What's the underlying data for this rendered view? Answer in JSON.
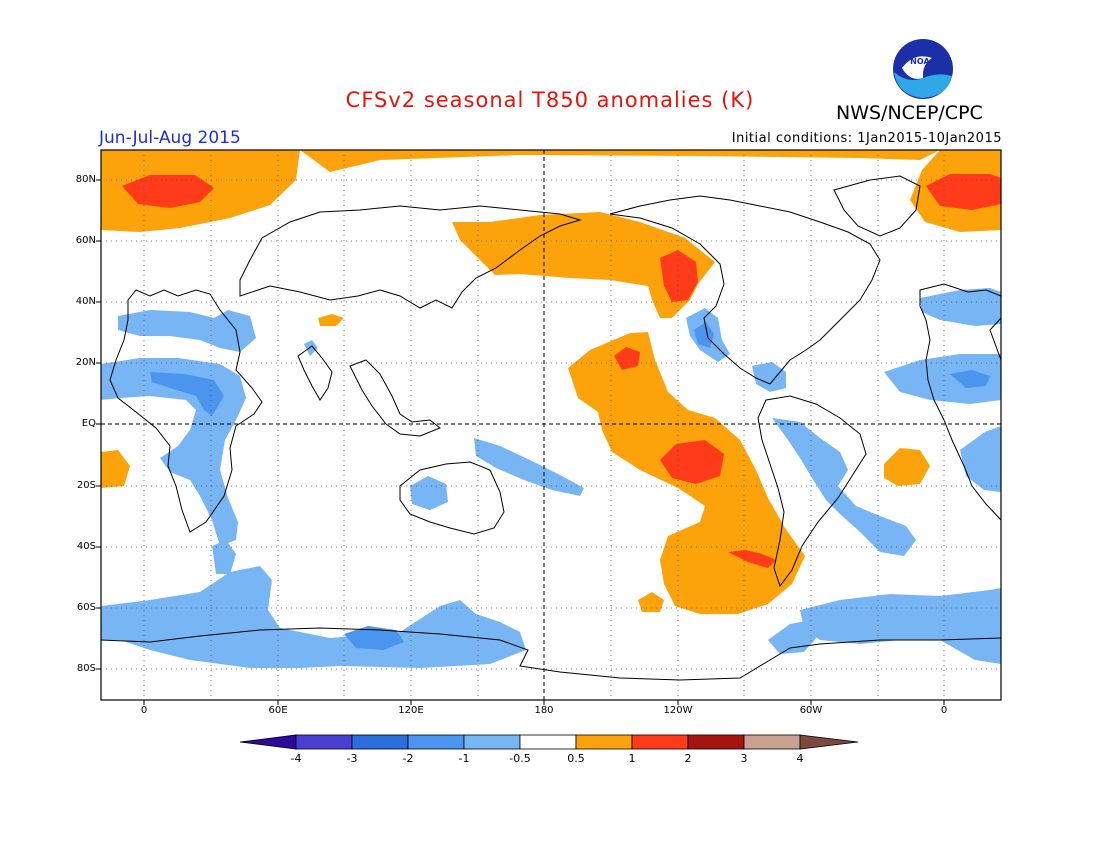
{
  "title": "CFSv2 seasonal T850 anomalies (K)",
  "agency": "NWS/NCEP/CPC",
  "season": "Jun-Jul-Aug 2015",
  "initial_conditions": "Initial conditions: 1Jan2015-10Jan2015",
  "logo_text": "NOAA",
  "lat_labels": [
    "80N",
    "60N",
    "40N",
    "20N",
    "EQ",
    "20S",
    "40S",
    "60S",
    "80S"
  ],
  "lon_labels": [
    "0",
    "60E",
    "120E",
    "180",
    "120W",
    "60W",
    "0"
  ],
  "colorbar": {
    "labels": [
      "-4",
      "-3",
      "-2",
      "-1",
      "-0.5",
      "0.5",
      "1",
      "2",
      "3",
      "4"
    ],
    "colors": [
      "#2b0a9c",
      "#4b3fd1",
      "#2a6fdd",
      "#4b95ef",
      "#77b5f4",
      "#ffffff",
      "#fca30b",
      "#ff3b1a",
      "#a5140f",
      "#c9a294",
      "#7a4a3e"
    ]
  },
  "anomaly_colors": {
    "warm1": "#fca30b",
    "warm2": "#ff3b1a",
    "cool1": "#77b5f4",
    "cool2": "#4b95ef"
  }
}
